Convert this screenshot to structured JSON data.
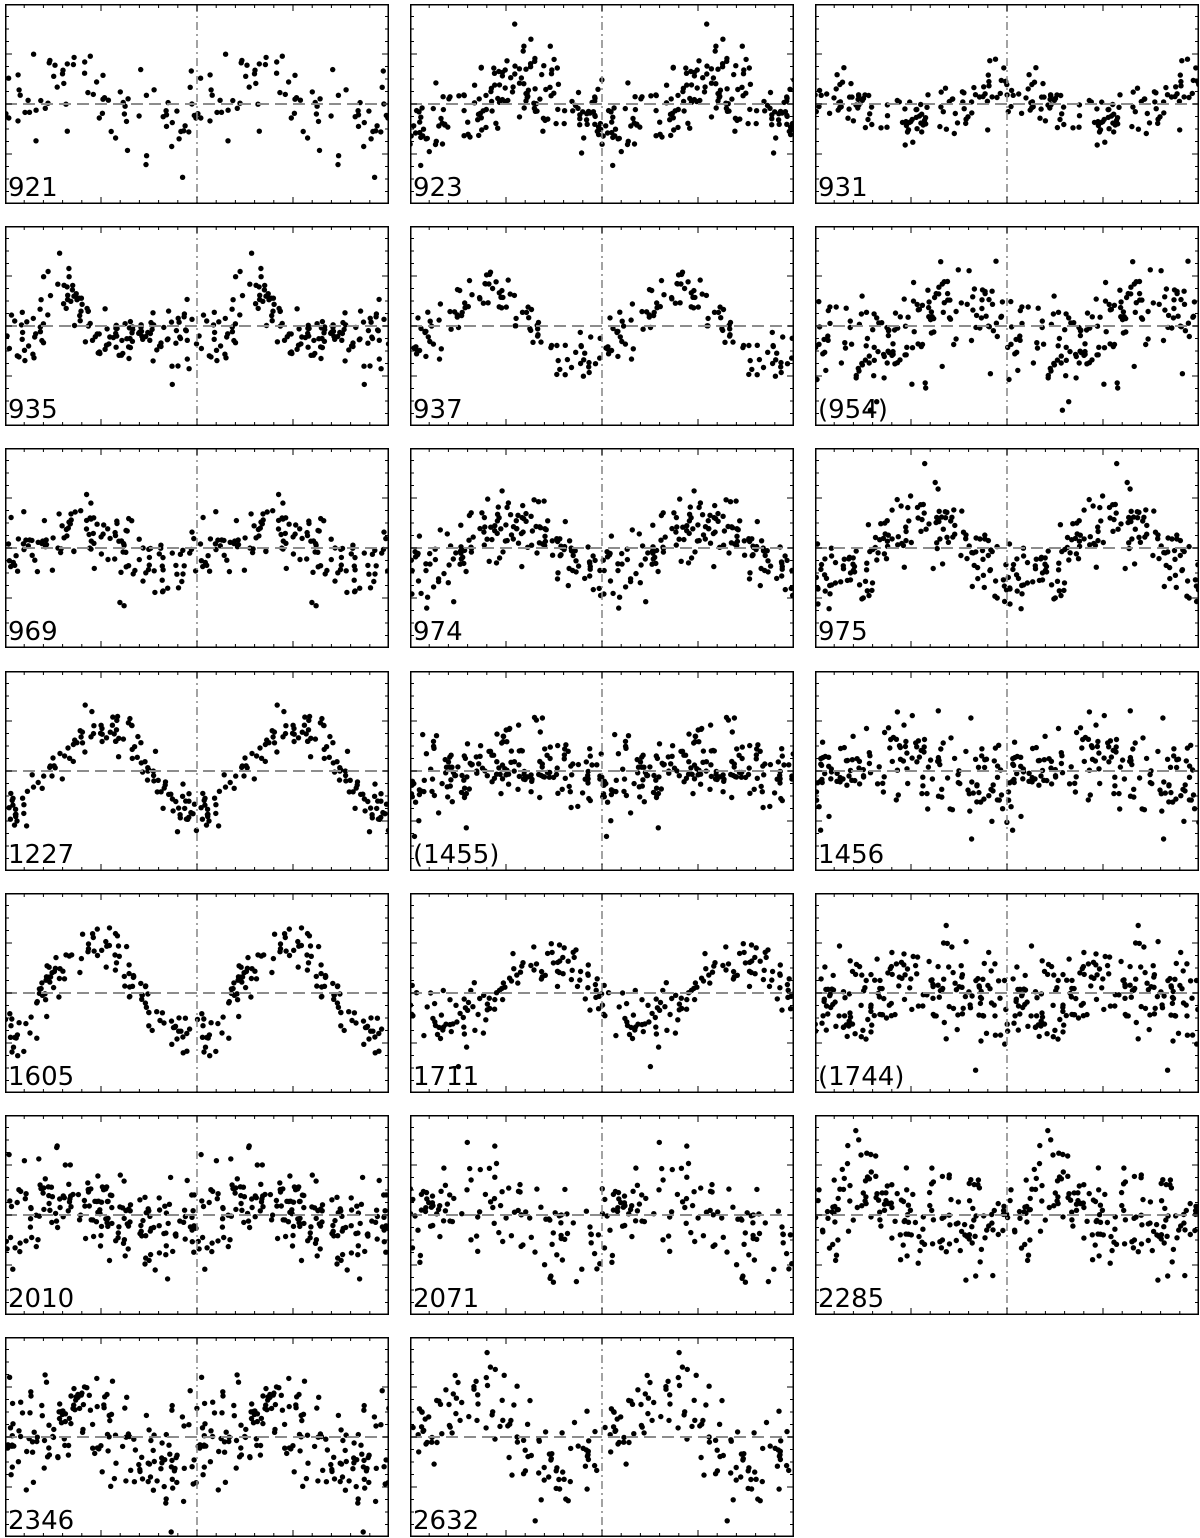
{
  "chart_data": {
    "type": "scatter",
    "layout": {
      "rows": 7,
      "cols": 3
    },
    "x_range": [
      0,
      2
    ],
    "reference_x": 1,
    "reference_y": 0,
    "y_range": [
      -1.6,
      1.6
    ],
    "grid": false,
    "colors": {
      "points": "#000000",
      "guides": "#8c8c8c",
      "frame": "#000000"
    },
    "panels": [
      {
        "label": "921",
        "n": 150,
        "amp": 0.3,
        "noise": 0.4,
        "phase": 0.1,
        "shape": "sine"
      },
      {
        "label": "923",
        "n": 320,
        "amp": 0.35,
        "noise": 0.3,
        "phase": 0.35,
        "shape": "sine"
      },
      {
        "label": "931",
        "n": 230,
        "amp": 0.22,
        "noise": 0.22,
        "phase": 0.75,
        "shape": "sine"
      },
      {
        "label": "935",
        "n": 280,
        "amp": 0.4,
        "noise": 0.25,
        "phase": 0.3,
        "shape": "peak"
      },
      {
        "label": "937",
        "n": 200,
        "amp": 0.55,
        "noise": 0.22,
        "phase": 0.15,
        "shape": "sine"
      },
      {
        "label": "(954)",
        "n": 300,
        "amp": 0.35,
        "noise": 0.4,
        "phase": 0.55,
        "shape": "sine"
      },
      {
        "label": "969",
        "n": 250,
        "amp": 0.25,
        "noise": 0.3,
        "phase": 0.05,
        "shape": "sine"
      },
      {
        "label": "974",
        "n": 300,
        "amp": 0.4,
        "noise": 0.28,
        "phase": 0.3,
        "shape": "sine"
      },
      {
        "label": "975",
        "n": 300,
        "amp": 0.5,
        "noise": 0.28,
        "phase": 0.35,
        "shape": "sine"
      },
      {
        "label": "1227",
        "n": 230,
        "amp": 0.65,
        "noise": 0.18,
        "phase": 0.25,
        "shape": "sine"
      },
      {
        "label": "(1455)",
        "n": 350,
        "amp": 0.18,
        "noise": 0.32,
        "phase": 0.3,
        "shape": "sine"
      },
      {
        "label": "1456",
        "n": 300,
        "amp": 0.2,
        "noise": 0.35,
        "phase": 0.2,
        "shape": "sine"
      },
      {
        "label": "1605",
        "n": 230,
        "amp": 0.75,
        "noise": 0.22,
        "phase": 0.2,
        "shape": "sine"
      },
      {
        "label": "1711",
        "n": 220,
        "amp": 0.5,
        "noise": 0.22,
        "phase": 0.45,
        "shape": "sine"
      },
      {
        "label": "(1744)",
        "n": 350,
        "amp": 0.15,
        "noise": 0.38,
        "phase": 0.35,
        "shape": "sine"
      },
      {
        "label": "2010",
        "n": 350,
        "amp": 0.25,
        "noise": 0.4,
        "phase": 0.05,
        "shape": "sine"
      },
      {
        "label": "2071",
        "n": 220,
        "amp": 0.4,
        "noise": 0.4,
        "phase": 0.1,
        "shape": "sine"
      },
      {
        "label": "2285",
        "n": 320,
        "amp": 0.35,
        "noise": 0.4,
        "phase": 0.25,
        "shape": "peak"
      },
      {
        "label": "2346",
        "n": 330,
        "amp": 0.4,
        "noise": 0.45,
        "phase": 0.1,
        "shape": "sine"
      },
      {
        "label": "2632",
        "n": 220,
        "amp": 0.55,
        "noise": 0.35,
        "phase": 0.05,
        "shape": "sine"
      }
    ]
  }
}
